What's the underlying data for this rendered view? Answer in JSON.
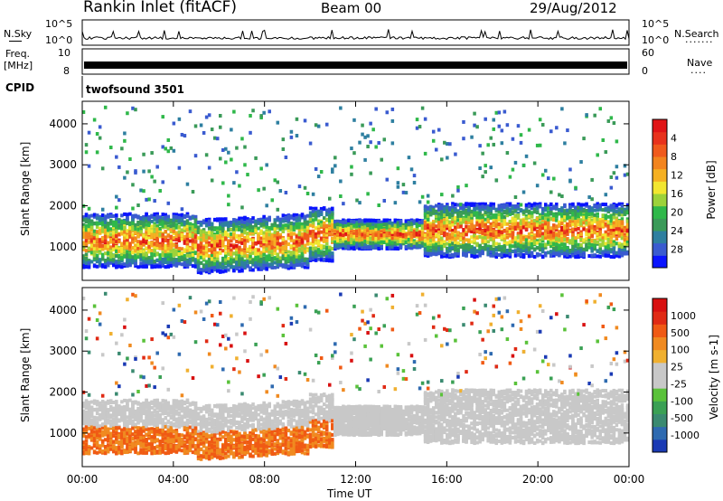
{
  "header": {
    "station": "Rankin Inlet (fitACF)",
    "beam": "Beam 00",
    "date": "29/Aug/2012"
  },
  "noise_panel": {
    "left_label": "N.Sky",
    "right_label": "N.Search",
    "y_top": "10^5",
    "y_bottom": "10^0",
    "right_dots": "......."
  },
  "freq_panel": {
    "left_label": "Freq.",
    "left_units": "[MHz]",
    "y_top": "10",
    "y_bottom": "8",
    "right_top": "60",
    "right_bottom": "0",
    "right_label": "Nave",
    "right_dots": "...."
  },
  "cpid_panel": {
    "label": "CPID",
    "value": "twofsound 3501"
  },
  "chart_data": [
    {
      "type": "heatmap",
      "name": "power",
      "ylabel": "Slant Range [km]",
      "xlabel": "Time UT",
      "x_ticks": [
        "00:00",
        "04:00",
        "08:00",
        "12:00",
        "16:00",
        "20:00",
        "00:00"
      ],
      "x_range_hours": [
        0,
        24
      ],
      "y_ticks": [
        1000,
        2000,
        3000,
        4000
      ],
      "y_range_km": [
        180,
        4550
      ],
      "colorbar": {
        "label": "Power [dB]",
        "ticks": [
          "4",
          "8",
          "12",
          "16",
          "20",
          "24",
          "28"
        ],
        "colors": [
          "#0a14ff",
          "#3a5bd0",
          "#2e7fa0",
          "#3a9a58",
          "#2fb84a",
          "#9cd23a",
          "#f2e630",
          "#f5b022",
          "#f2841e",
          "#f05a1c",
          "#e8321c",
          "#e01416"
        ]
      }
    },
    {
      "type": "heatmap",
      "name": "velocity",
      "ylabel": "Slant Range [km]",
      "xlabel": "Time UT",
      "x_ticks": [
        "00:00",
        "04:00",
        "08:00",
        "12:00",
        "16:00",
        "20:00",
        "00:00"
      ],
      "x_range_hours": [
        0,
        24
      ],
      "y_ticks": [
        1000,
        2000,
        3000,
        4000
      ],
      "y_range_km": [
        180,
        4550
      ],
      "colorbar": {
        "label": "Velocity [m s-1]",
        "ticks": [
          "1000",
          "500",
          "100",
          "25",
          "-25",
          "-100",
          "-500",
          "-1000"
        ],
        "colors": [
          "#1a3ab4",
          "#2e6ab0",
          "#3a8a70",
          "#3aa054",
          "#5ac23a",
          "#c8c8c8",
          "#c8c8c8",
          "#f0b030",
          "#f08a20",
          "#f05a14",
          "#e02a14",
          "#d81010"
        ]
      }
    }
  ]
}
